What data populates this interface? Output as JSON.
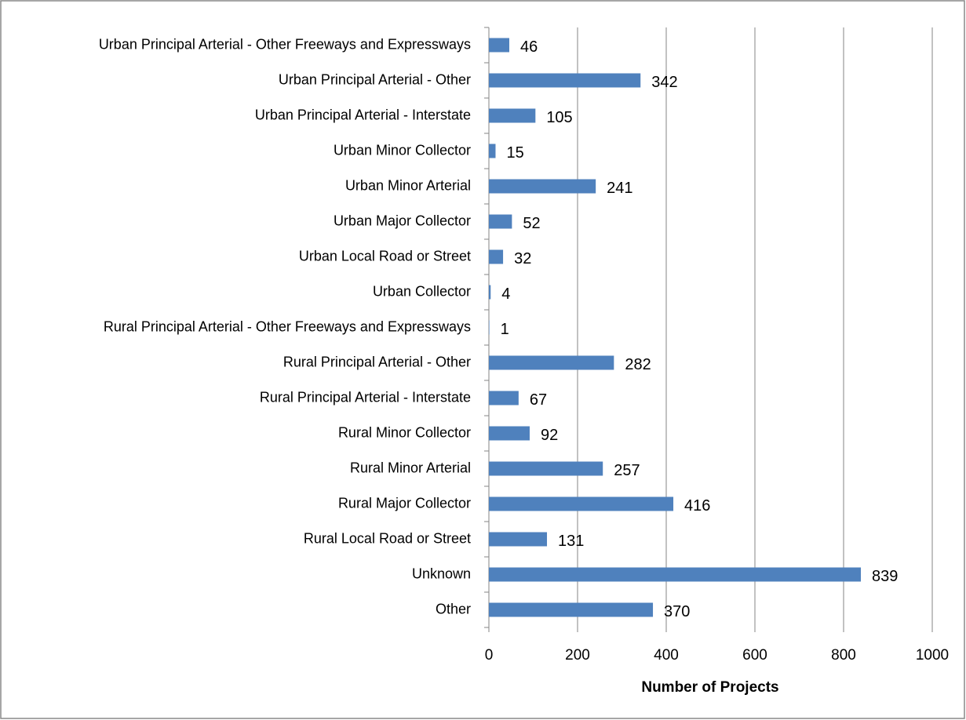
{
  "chart_data": {
    "type": "bar",
    "orientation": "horizontal",
    "x_label": "Number of Projects",
    "categories": [
      "Urban Principal Arterial - Other Freeways and Expressways",
      "Urban Principal Arterial - Other",
      "Urban Principal Arterial - Interstate",
      "Urban Minor Collector",
      "Urban Minor Arterial",
      "Urban Major Collector",
      "Urban Local Road or Street",
      "Urban Collector",
      "Rural Principal Arterial - Other Freeways and Expressways",
      "Rural Principal Arterial - Other",
      "Rural Principal Arterial - Interstate",
      "Rural Minor Collector",
      "Rural Minor Arterial",
      "Rural Major Collector",
      "Rural Local Road or Street",
      "Unknown",
      "Other"
    ],
    "values": [
      46,
      342,
      105,
      15,
      241,
      52,
      32,
      4,
      1,
      282,
      67,
      92,
      257,
      416,
      131,
      839,
      370
    ],
    "color": "#4f81bd",
    "xlim": [
      0,
      1000
    ],
    "xticks": [
      0,
      200,
      400,
      600,
      800,
      1000
    ],
    "grid": true
  }
}
